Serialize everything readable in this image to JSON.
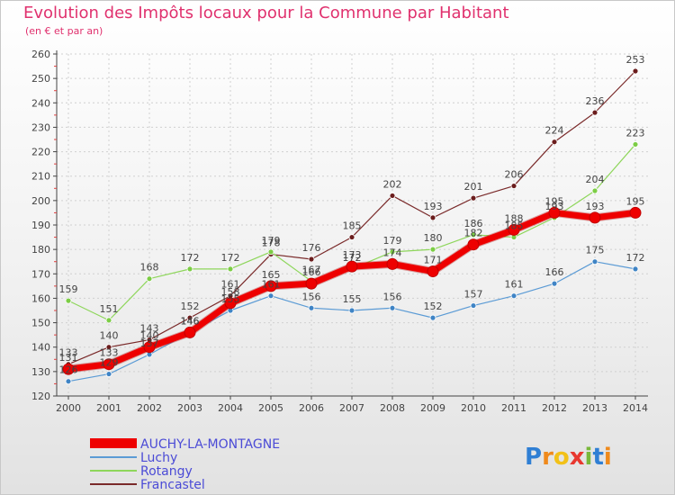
{
  "title": "Evolution des Impôts locaux pour la Commune par Habitant",
  "subtitle": "(en € et par an)",
  "brand": "Proxiti",
  "brand_letters": [
    "P",
    "r",
    "o",
    "x",
    "i",
    "t",
    "i"
  ],
  "brand_colors": [
    "#2f7fd4",
    "#ef8a1c",
    "#f2c118",
    "#e8382f",
    "#79b83a",
    "#2f7fd4",
    "#ef8a1c"
  ],
  "chart_data": {
    "type": "line",
    "x": [
      "2000",
      "2001",
      "2002",
      "2003",
      "2004",
      "2005",
      "2006",
      "2007",
      "2008",
      "2009",
      "2010",
      "2011",
      "2012",
      "2013",
      "2014"
    ],
    "ylim": [
      120,
      260
    ],
    "yticks": [
      120,
      130,
      140,
      150,
      160,
      170,
      180,
      190,
      200,
      210,
      220,
      230,
      240,
      250,
      260
    ],
    "grid": true,
    "series": [
      {
        "name": "Francastel",
        "color": "#7a2a2a",
        "marker": "#6b1d1d",
        "width": 1.2,
        "values": [
          133,
          140,
          143,
          152,
          161,
          178,
          176,
          185,
          202,
          193,
          201,
          206,
          224,
          236,
          253
        ],
        "label_offset": -9
      },
      {
        "name": "Rotangy",
        "color": "#8ed65b",
        "marker": "#7ccd45",
        "width": 1.2,
        "values": [
          159,
          151,
          168,
          172,
          172,
          179,
          167,
          172,
          179,
          180,
          186,
          185,
          193,
          204,
          223
        ],
        "label_offset": -9
      },
      {
        "name": "Luchy",
        "color": "#5b9bd5",
        "marker": "#3f84c5",
        "width": 1.2,
        "values": [
          126,
          129,
          137,
          146,
          155,
          161,
          156,
          155,
          156,
          152,
          157,
          161,
          166,
          175,
          172
        ],
        "label_offset": -9
      },
      {
        "name": "AUCHY-LA-MONTAGNE",
        "color": "#ee0000",
        "marker": "#ee0000",
        "width": 7,
        "values": [
          131,
          133,
          140,
          146,
          158,
          165,
          166,
          173,
          174,
          171,
          182,
          188,
          195,
          193,
          195
        ],
        "label_offset": -9
      }
    ],
    "legend": [
      "AUCHY-LA-MONTAGNE",
      "Luchy",
      "Rotangy",
      "Francastel"
    ],
    "legend_position": "bottom-left"
  }
}
